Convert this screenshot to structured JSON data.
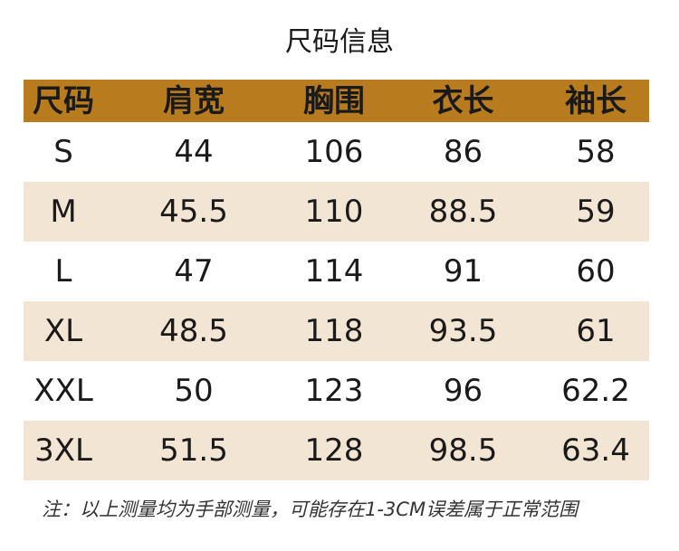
{
  "title": "尺码信息",
  "colors": {
    "header_bg": "#B87B1E",
    "stripe_bg": "#F3E5D4",
    "plain_bg": "#FFFFFF"
  },
  "table": {
    "headers": [
      "尺码",
      "肩宽",
      "胸围",
      "衣长",
      "袖长"
    ],
    "rows": [
      [
        "S",
        "44",
        "106",
        "86",
        "58"
      ],
      [
        "M",
        "45.5",
        "110",
        "88.5",
        "59"
      ],
      [
        "L",
        "47",
        "114",
        "91",
        "60"
      ],
      [
        "XL",
        "48.5",
        "118",
        "93.5",
        "61"
      ],
      [
        "XXL",
        "50",
        "123",
        "96",
        "62.2"
      ],
      [
        "3XL",
        "51.5",
        "128",
        "98.5",
        "63.4"
      ]
    ]
  },
  "note": "注：以上测量均为手部测量，可能存在1-3CM误差属于正常范围"
}
